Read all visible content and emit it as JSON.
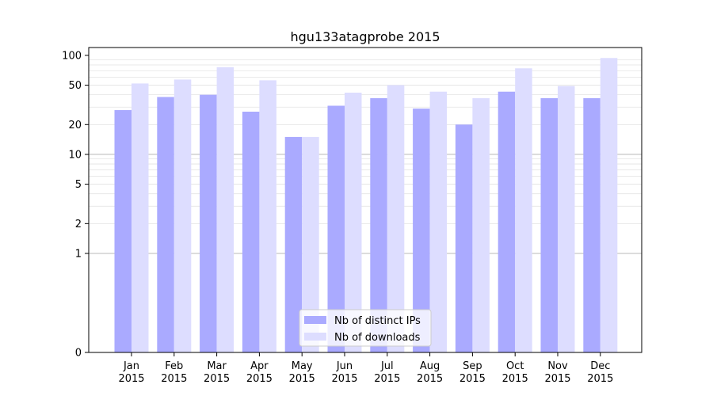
{
  "chart_data": {
    "type": "bar",
    "title": "hgu133atagprobe 2015",
    "xlabel": "",
    "ylabel": "",
    "yscale": "symlog",
    "ylim": [
      0,
      120
    ],
    "yticks": [
      0,
      1,
      2,
      5,
      10,
      20,
      50,
      100
    ],
    "categories": [
      [
        "Jan",
        "2015"
      ],
      [
        "Feb",
        "2015"
      ],
      [
        "Mar",
        "2015"
      ],
      [
        "Apr",
        "2015"
      ],
      [
        "May",
        "2015"
      ],
      [
        "Jun",
        "2015"
      ],
      [
        "Jul",
        "2015"
      ],
      [
        "Aug",
        "2015"
      ],
      [
        "Sep",
        "2015"
      ],
      [
        "Oct",
        "2015"
      ],
      [
        "Nov",
        "2015"
      ],
      [
        "Dec",
        "2015"
      ]
    ],
    "series": [
      {
        "name": "Nb of distinct IPs",
        "color": "#aaaaff",
        "values": [
          28,
          38,
          40,
          27,
          15,
          31,
          37,
          29,
          20,
          43,
          37,
          37
        ]
      },
      {
        "name": "Nb of downloads",
        "color": "#ddddff",
        "values": [
          52,
          57,
          76,
          56,
          15,
          42,
          50,
          43,
          37,
          74,
          49,
          94
        ]
      }
    ],
    "grid": true,
    "legend": "lower-center"
  }
}
